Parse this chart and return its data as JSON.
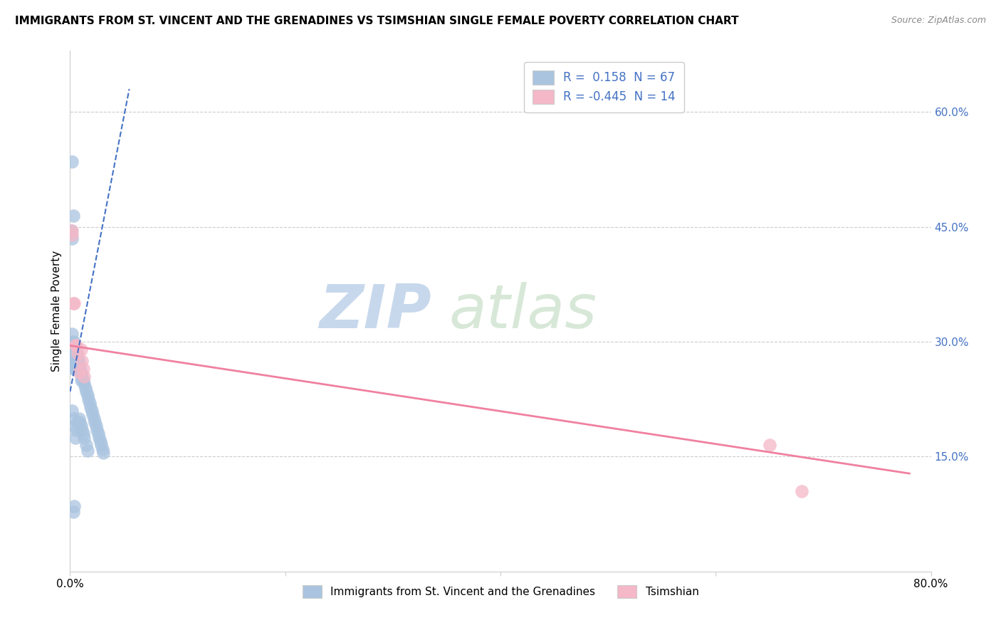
{
  "title": "IMMIGRANTS FROM ST. VINCENT AND THE GRENADINES VS TSIMSHIAN SINGLE FEMALE POVERTY CORRELATION CHART",
  "source": "Source: ZipAtlas.com",
  "ylabel": "Single Female Poverty",
  "right_yticks": [
    "60.0%",
    "45.0%",
    "30.0%",
    "15.0%"
  ],
  "right_ytick_vals": [
    0.6,
    0.45,
    0.3,
    0.15
  ],
  "xlim": [
    0.0,
    0.8
  ],
  "ylim": [
    0.0,
    0.68
  ],
  "legend1_label": "R =  0.158  N = 67",
  "legend2_label": "R = -0.445  N = 14",
  "legend_bottom_label1": "Immigrants from St. Vincent and the Grenadines",
  "legend_bottom_label2": "Tsimshian",
  "blue_color": "#aac4e0",
  "pink_color": "#f4b8c8",
  "blue_line_color": "#4472c4",
  "pink_line_color": "#f080a0",
  "blue_scatter_x": [
    0.001,
    0.001,
    0.001,
    0.002,
    0.002,
    0.002,
    0.002,
    0.003,
    0.003,
    0.003,
    0.003,
    0.003,
    0.004,
    0.004,
    0.004,
    0.004,
    0.005,
    0.005,
    0.005,
    0.005,
    0.006,
    0.006,
    0.006,
    0.006,
    0.007,
    0.007,
    0.007,
    0.008,
    0.008,
    0.008,
    0.009,
    0.009,
    0.01,
    0.01,
    0.01,
    0.011,
    0.011,
    0.012,
    0.012,
    0.013,
    0.013,
    0.014,
    0.015,
    0.015,
    0.016,
    0.016,
    0.017,
    0.018,
    0.019,
    0.02,
    0.021,
    0.022,
    0.023,
    0.024,
    0.025,
    0.026,
    0.027,
    0.028,
    0.029,
    0.03,
    0.031,
    0.002,
    0.003,
    0.004,
    0.001,
    0.002,
    0.003
  ],
  "blue_scatter_y": [
    0.29,
    0.28,
    0.27,
    0.31,
    0.3,
    0.285,
    0.21,
    0.295,
    0.29,
    0.275,
    0.265,
    0.2,
    0.3,
    0.285,
    0.27,
    0.19,
    0.29,
    0.28,
    0.265,
    0.175,
    0.285,
    0.275,
    0.265,
    0.185,
    0.28,
    0.27,
    0.195,
    0.275,
    0.265,
    0.2,
    0.265,
    0.195,
    0.26,
    0.25,
    0.19,
    0.255,
    0.185,
    0.25,
    0.18,
    0.245,
    0.175,
    0.24,
    0.235,
    0.165,
    0.23,
    0.158,
    0.225,
    0.22,
    0.215,
    0.21,
    0.205,
    0.2,
    0.195,
    0.19,
    0.185,
    0.18,
    0.175,
    0.17,
    0.165,
    0.16,
    0.155,
    0.535,
    0.465,
    0.085,
    0.445,
    0.435,
    0.078
  ],
  "pink_scatter_x": [
    0.002,
    0.002,
    0.003,
    0.004,
    0.005,
    0.006,
    0.007,
    0.008,
    0.01,
    0.011,
    0.012,
    0.013,
    0.65,
    0.68
  ],
  "pink_scatter_y": [
    0.445,
    0.44,
    0.35,
    0.35,
    0.295,
    0.295,
    0.285,
    0.26,
    0.29,
    0.275,
    0.265,
    0.255,
    0.165,
    0.105
  ],
  "blue_trend_x0": 0.0,
  "blue_trend_y0": 0.235,
  "blue_trend_x1": 0.055,
  "blue_trend_y1": 0.63,
  "pink_trend_x0": 0.0,
  "pink_trend_y0": 0.295,
  "pink_trend_x1": 0.78,
  "pink_trend_y1": 0.128,
  "watermark_zip": "ZIP",
  "watermark_atlas": "atlas",
  "watermark_color": "#d0dff0",
  "grid_color": "#cccccc",
  "background_color": "#ffffff"
}
